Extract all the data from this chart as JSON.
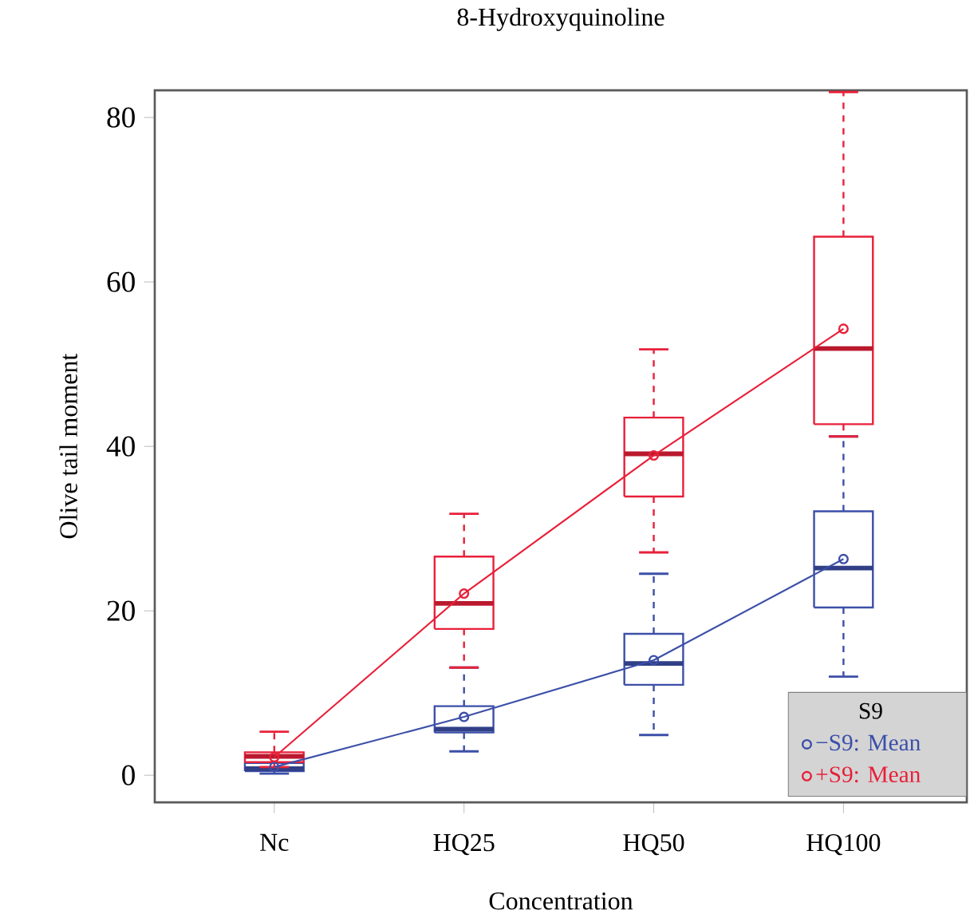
{
  "chart_data": {
    "type": "box",
    "title": "8-Hydroxyquinoline",
    "xlabel": "Concentration",
    "ylabel": "Olive tail moment",
    "categories": [
      "Nc",
      "HQ25",
      "HQ50",
      "HQ100"
    ],
    "ylim": [
      -3.3,
      83.3
    ],
    "yticks": [
      0,
      20,
      40,
      60,
      80
    ],
    "legend": "bottom right",
    "legend_title": "S9",
    "marker": "circle",
    "series": [
      {
        "color": "#3c4fa8",
        "boxes": [
          {
            "low": 0.2,
            "q1": 0.5,
            "median": 0.8,
            "q3": 1.5,
            "high": 2.0
          },
          {
            "low": 2.9,
            "q1": 5.2,
            "median": 5.6,
            "q3": 8.4,
            "high": 13.1
          },
          {
            "low": 4.9,
            "q1": 11.0,
            "median": 13.6,
            "q3": 17.2,
            "high": 24.5
          },
          {
            "low": 12,
            "q1": 20.4,
            "median": 25.2,
            "q3": 32.1,
            "high": 41.2
          }
        ]
      },
      {
        "color": "#e8203a",
        "boxes": [
          {
            "low": 1.0,
            "q1": 1.6,
            "median": 2.3,
            "q3": 2.8,
            "high": 5.3
          },
          {
            "low": 13.1,
            "q1": 17.8,
            "median": 20.9,
            "q3": 26.6,
            "high": 31.8
          },
          {
            "low": 27.1,
            "q1": 33.9,
            "median": 39.1,
            "q3": 43.5,
            "high": 51.8
          },
          {
            "low": 41.2,
            "q1": 42.7,
            "median": 51.9,
            "q3": 65.5,
            "high": 83.1
          }
        ]
      },
      {
        "type": "line",
        "name": "−S9: Mean",
        "color": "#3c4fa8",
        "values": [
          1.0,
          7.1,
          14.0,
          26.3
        ]
      },
      {
        "type": "line",
        "name": "+S9: Mean",
        "color": "#e8203a",
        "values": [
          2.2,
          22.1,
          38.9,
          54.3
        ]
      }
    ]
  }
}
